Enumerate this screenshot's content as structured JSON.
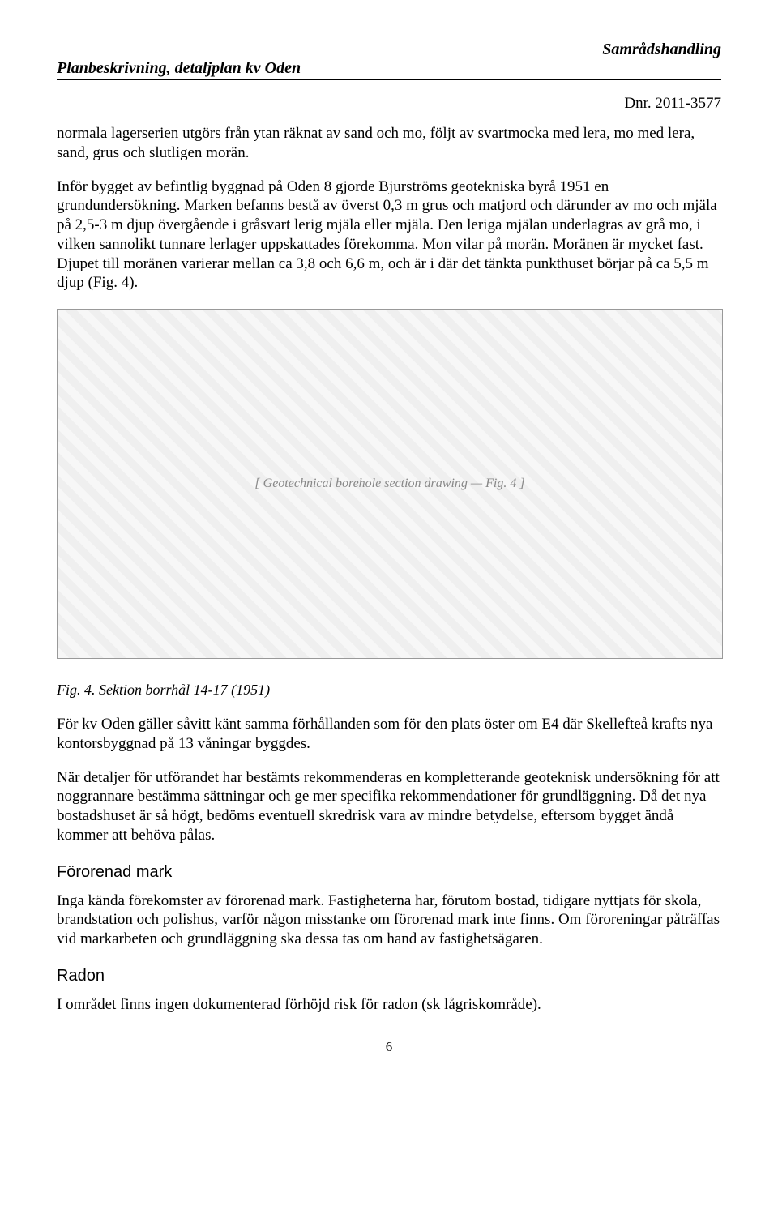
{
  "header": {
    "left": "Planbeskrivning, detaljplan kv Oden",
    "right": "Samrådshandling"
  },
  "dnr": "Dnr. 2011-3577",
  "paragraphs": {
    "p1": "normala lagerserien utgörs från ytan räknat av sand och mo, följt av svartmocka med lera, mo med lera, sand, grus och slutligen morän.",
    "p2": "Inför bygget av befintlig byggnad på Oden 8 gjorde Bjurströms geotekniska byrå 1951 en grundundersökning. Marken befanns bestå av överst 0,3 m grus och matjord och därunder av mo och mjäla på 2,5-3 m djup övergående i gråsvart lerig mjäla eller mjäla. Den leriga mjälan underlagras av grå mo, i vilken sannolikt tunnare lerlager uppskattades förekomma. Mon vilar på morän. Moränen är mycket fast. Djupet till moränen varierar mellan ca 3,8 och 6,6 m, och är i där det tänkta punkthuset börjar på ca 5,5 m djup (Fig. 4).",
    "p3": "För kv Oden gäller såvitt känt samma förhållanden som för den plats öster om E4 där Skellefteå krafts nya kontorsbyggnad på 13 våningar byggdes.",
    "p4": "När detaljer för utförandet har bestämts rekommenderas en kompletterande geoteknisk undersökning för att noggrannare bestämma sättningar och ge mer specifika rekommendationer för grundläggning. Då det nya bostadshuset är så högt, bedöms eventuell skredrisk vara av mindre betydelse, eftersom bygget ändå kommer att behöva pålas.",
    "p5": "Inga kända förekomster av förorenad mark. Fastigheterna har, förutom bostad, tidigare nyttjats för skola, brandstation och polishus, varför någon misstanke om förorenad mark inte finns. Om föroreningar påträffas vid markarbeten och grundläggning ska dessa tas om hand av fastighetsägaren.",
    "p6": "I området finns ingen dokumenterad förhöjd risk för radon (sk lågriskområde)."
  },
  "figure": {
    "placeholder_label": "[ Geotechnical borehole section drawing — Fig. 4 ]",
    "caption": "Fig. 4. Sektion borrhål 14-17 (1951)"
  },
  "sections": {
    "fororenad": "Förorenad mark",
    "radon": "Radon"
  },
  "page_number": "6"
}
